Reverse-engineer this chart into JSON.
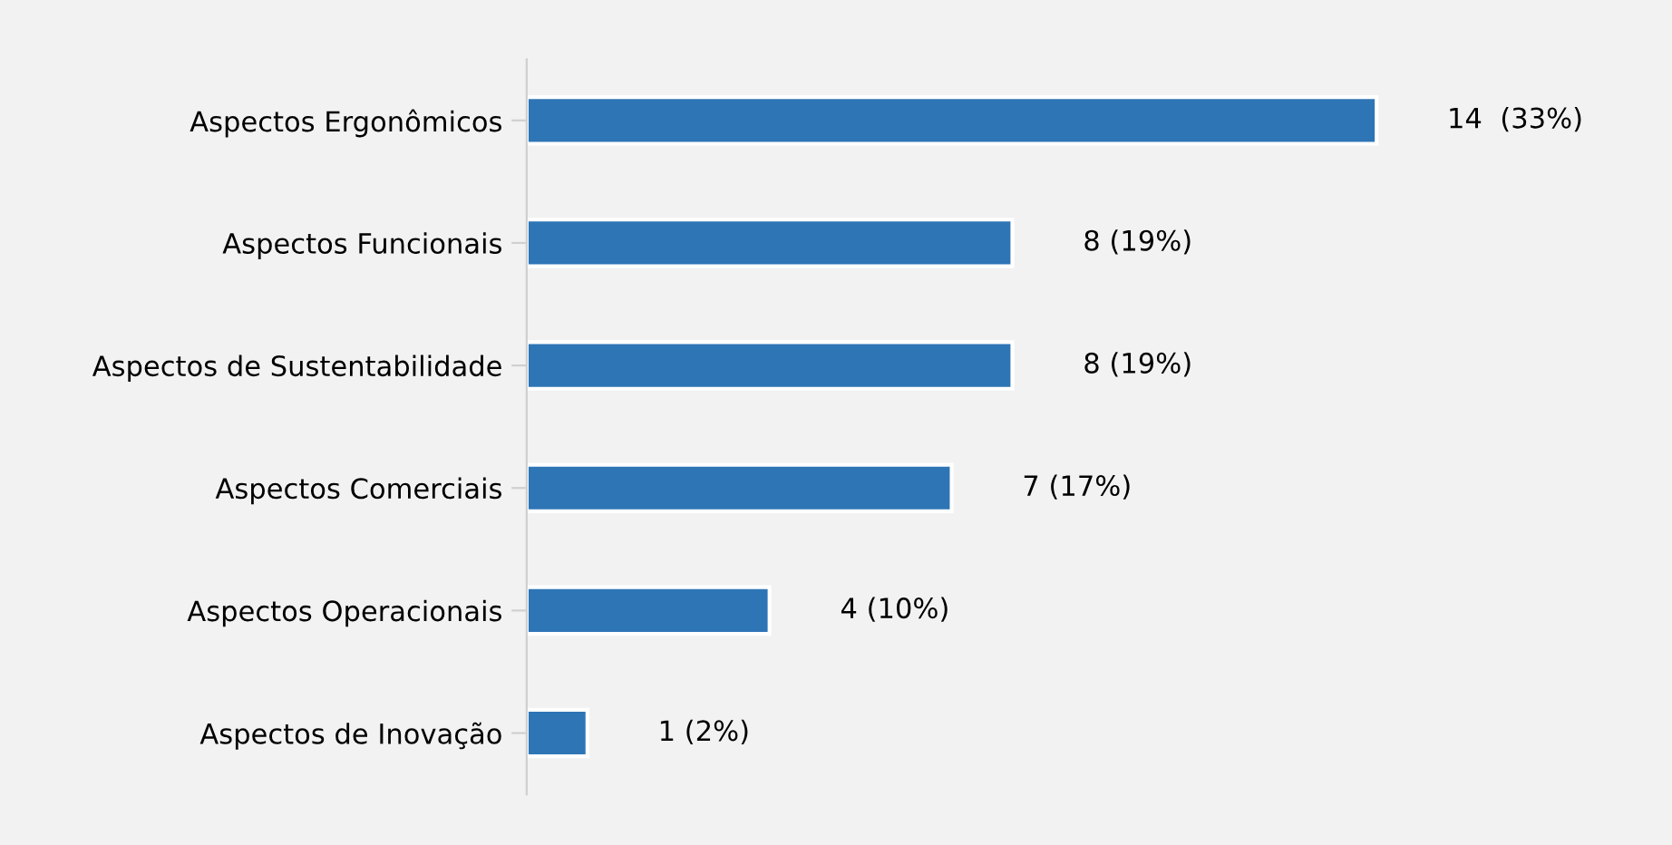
{
  "chart_data": {
    "type": "bar",
    "orientation": "horizontal",
    "categories": [
      "Aspectos Ergonômicos",
      "Aspectos Funcionais",
      "Aspectos de Sustentabilidade",
      "Aspectos Comerciais",
      "Aspectos Operacionais",
      "Aspectos de Inovação"
    ],
    "values": [
      14,
      8,
      8,
      7,
      4,
      1
    ],
    "value_labels": [
      "14  (33%)",
      "8 (19%)",
      "8 (19%)",
      "7 (17%)",
      "4 (10%)",
      "1 (2%)"
    ],
    "color": "#2e75b6",
    "tick_labels": "y",
    "grid": false,
    "legend": false
  }
}
